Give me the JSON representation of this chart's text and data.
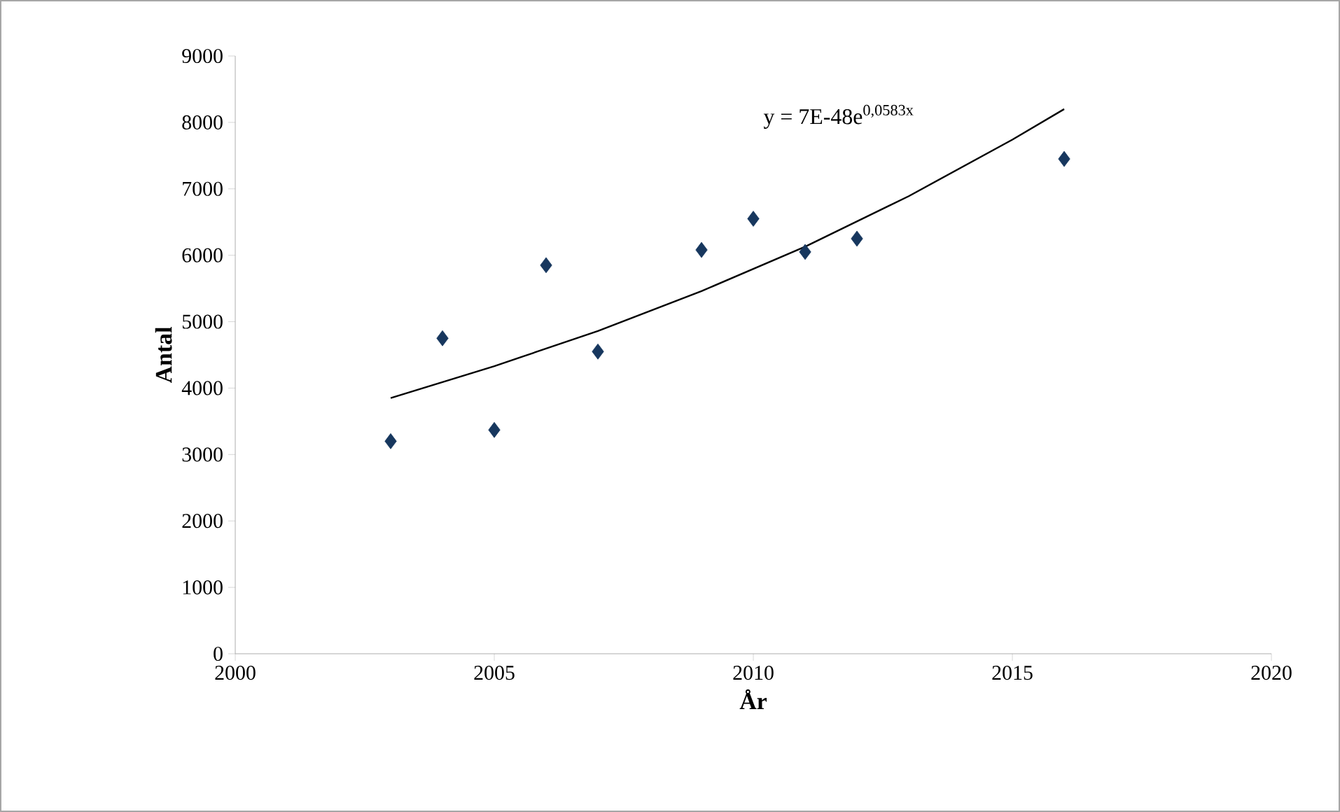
{
  "chart_data": {
    "type": "scatter",
    "xlabel": "År",
    "ylabel": "Antal",
    "marker": "diamond",
    "x": [
      2003,
      2004,
      2005,
      2006,
      2007,
      2009,
      2010,
      2011,
      2012,
      2016
    ],
    "series": [
      {
        "color": "#17375e",
        "values": [
          3200,
          4750,
          3370,
          5850,
          4550,
          6080,
          6550,
          6050,
          6250,
          7450
        ]
      },
      {
        "type": "line",
        "color": "#000000",
        "marker": "none",
        "x": [
          2003,
          2005,
          2007,
          2009,
          2011,
          2013,
          2015,
          2016
        ],
        "values": [
          3850,
          4330,
          4860,
          5460,
          6130,
          6890,
          7740,
          8200
        ]
      }
    ],
    "annotations": [
      "y = 7E-48e$^{0,0583x}$"
    ],
    "xlim": [
      2000,
      2020
    ],
    "xticks": [
      2000,
      2005,
      2010,
      2015,
      2020
    ],
    "ylim": [
      0,
      9000
    ],
    "yticks": [
      0,
      1000,
      2000,
      3000,
      4000,
      5000,
      6000,
      7000,
      8000,
      9000
    ]
  }
}
